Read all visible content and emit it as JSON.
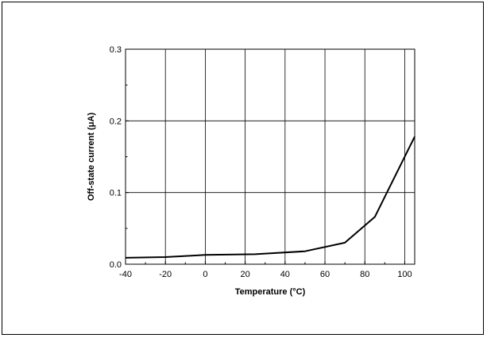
{
  "chart_data": {
    "type": "line",
    "title": "",
    "xlabel": "Temperature (°C)",
    "ylabel": "Off-state current (μA)",
    "xlim": [
      -40,
      105
    ],
    "ylim": [
      0.0,
      0.3
    ],
    "grid": true,
    "x_ticks": [
      -40,
      -20,
      0,
      20,
      40,
      60,
      80,
      100
    ],
    "x_tick_labels": [
      "-40",
      "-20",
      "0",
      "20",
      "40",
      "60",
      "80",
      "100"
    ],
    "y_ticks": [
      0.0,
      0.1,
      0.2,
      0.3
    ],
    "y_tick_labels": [
      "0.0",
      "0.1",
      "0.2",
      "0.3"
    ],
    "series": [
      {
        "x": [
          -40,
          -20,
          0,
          25,
          50,
          70,
          85,
          105
        ],
        "y": [
          0.009,
          0.01,
          0.013,
          0.014,
          0.018,
          0.03,
          0.066,
          0.178
        ]
      }
    ],
    "colors": {
      "line": "#000000",
      "grid": "#000000",
      "frame": "#000000"
    }
  }
}
